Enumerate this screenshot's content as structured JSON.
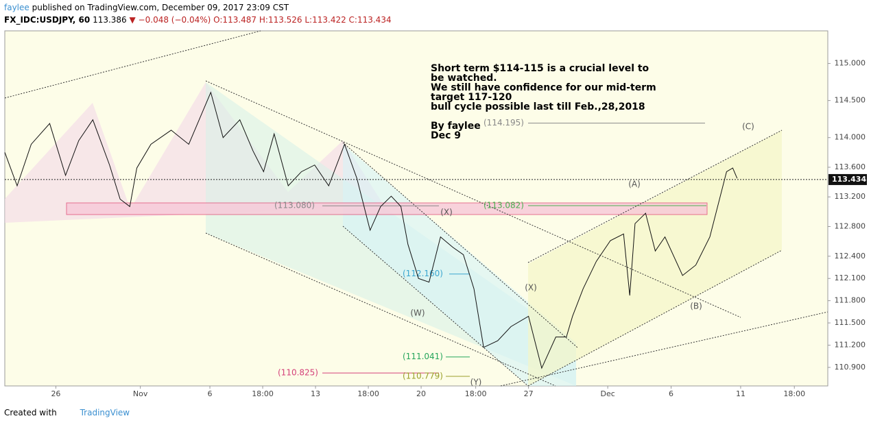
{
  "header": {
    "author": "faylee",
    "published": "published on TradingView.com, December 09, 2017 23:09 CST",
    "symbol": "FX_IDC:USDJPY, 60",
    "last": "113.386",
    "change": "▼ −0.048 (−0.04%)",
    "ohlc": "O:113.487 H:113.526 L:113.422 C:113.434"
  },
  "chart_data": {
    "type": "line",
    "color": "#111111",
    "x": [
      0,
      14,
      30,
      51,
      69,
      84,
      100,
      119,
      131,
      142,
      150,
      166,
      189,
      209,
      224,
      234,
      248,
      267,
      282,
      294,
      306,
      322,
      337,
      352,
      368,
      386,
      400,
      415,
      427,
      439,
      450,
      458,
      470,
      482,
      495,
      509,
      521,
      533,
      544,
      560,
      575,
      595,
      601,
      610,
      626,
      638,
      645,
      657,
      672,
      688,
      703,
      710,
      716,
      728,
      739,
      750,
      770,
      785,
      801,
      812,
      820,
      827,
      832
    ],
    "series": [
      {
        "name": "USDJPY",
        "values": [
          113.8,
          113.35,
          113.91,
          114.19,
          113.49,
          113.96,
          114.24,
          113.63,
          113.17,
          113.07,
          113.59,
          113.91,
          114.1,
          113.91,
          114.33,
          114.61,
          114.0,
          114.24,
          113.82,
          113.54,
          114.05,
          113.35,
          113.54,
          113.63,
          113.35,
          113.91,
          113.45,
          112.75,
          113.07,
          113.21,
          113.07,
          112.56,
          112.1,
          112.05,
          112.66,
          112.52,
          112.42,
          111.96,
          111.17,
          111.26,
          111.45,
          111.59,
          111.31,
          110.89,
          111.31,
          111.31,
          111.59,
          111.96,
          112.33,
          112.61,
          112.7,
          111.87,
          112.84,
          112.98,
          112.47,
          112.66,
          112.14,
          112.28,
          112.66,
          113.17,
          113.54,
          113.59,
          113.45
        ]
      }
    ],
    "xlim": [
      0,
      935
    ],
    "xticks": [
      {
        "value": 58,
        "label": "26"
      },
      {
        "value": 154,
        "label": "Nov"
      },
      {
        "value": 233,
        "label": "6"
      },
      {
        "value": 293,
        "label": "18:00"
      },
      {
        "value": 353,
        "label": "13"
      },
      {
        "value": 413,
        "label": "18:00"
      },
      {
        "value": 473,
        "label": "20"
      },
      {
        "value": 535,
        "label": "18:00"
      },
      {
        "value": 595,
        "label": "27"
      },
      {
        "value": 685,
        "label": "Dec"
      },
      {
        "value": 757,
        "label": "6"
      },
      {
        "value": 836,
        "label": "11"
      },
      {
        "value": 897,
        "label": "18:00"
      }
    ],
    "ylim": [
      110.65,
      115.44
    ],
    "yticks": [
      {
        "value": 115,
        "label": "115.000"
      },
      {
        "value": 114.5,
        "label": "114.500"
      },
      {
        "value": 114,
        "label": "114.000"
      },
      {
        "value": 113.6,
        "label": "113.600"
      },
      {
        "value": 113.2,
        "label": "113.200"
      },
      {
        "value": 112.8,
        "label": "112.800"
      },
      {
        "value": 112.4,
        "label": "112.400"
      },
      {
        "value": 112.1,
        "label": "112.100"
      },
      {
        "value": 111.8,
        "label": "111.800"
      },
      {
        "value": 111.5,
        "label": "111.500"
      },
      {
        "value": 111.2,
        "label": "111.200"
      },
      {
        "value": 110.9,
        "label": "110.900"
      }
    ],
    "current_price": 113.434,
    "levels": [
      {
        "value": 113.08,
        "label": "(113.080)",
        "color": "#888888"
      },
      {
        "value": 113.082,
        "label": "(113.082)",
        "color": "#4caf50"
      },
      {
        "value": 114.195,
        "label": "(114.195)",
        "color": "#888888"
      },
      {
        "value": 112.16,
        "label": "(112.160)",
        "color": "#3aa6d0"
      },
      {
        "value": 111.041,
        "label": "(111.041)",
        "color": "#26a65b"
      },
      {
        "value": 110.825,
        "label": "(110.825)",
        "color": "#d4417a"
      },
      {
        "value": 110.779,
        "label": "(110.779)",
        "color": "#9aa02a"
      }
    ],
    "note": [
      "Short term $114-115 is a crucial level to",
      "be watched.",
      "We still have confidence for our mid-term",
      "target 117-120",
      "bull cycle possible last till Feb.,28,2018"
    ],
    "byline": [
      "By faylee",
      "Dec 9"
    ],
    "waves": [
      "(A)",
      "(B)",
      "(C)",
      "(X)",
      "(X)",
      "(W)",
      "(Y)"
    ]
  },
  "footer": {
    "created": "Created with",
    "brand": "TradingView"
  }
}
